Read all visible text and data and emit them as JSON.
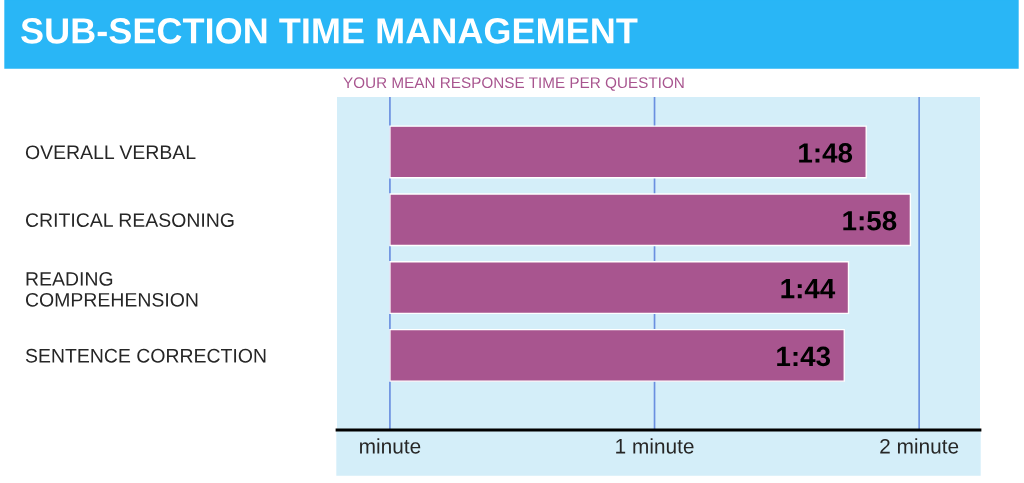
{
  "chart_data": {
    "type": "bar",
    "orientation": "horizontal",
    "title": "SUB-SECTION TIME MANAGEMENT",
    "subtitle": "YOUR MEAN RESPONSE TIME PER QUESTION",
    "categories": [
      "OVERALL VERBAL",
      "CRITICAL REASONING",
      "READING\nCOMPREHENSION",
      "SENTENCE CORRECTION"
    ],
    "values": [
      1.8,
      1.967,
      1.733,
      1.717
    ],
    "value_labels": [
      "1:48",
      "1:58",
      "1:44",
      "1:43"
    ],
    "color": "#a8558f",
    "xlim": [
      -0.2,
      2.23
    ],
    "xticks": [
      {
        "value": 0,
        "label": "minute"
      },
      {
        "value": 1,
        "label": "1 minute"
      },
      {
        "value": 2,
        "label": "2 minute"
      }
    ],
    "grid": "x",
    "legend": false
  }
}
